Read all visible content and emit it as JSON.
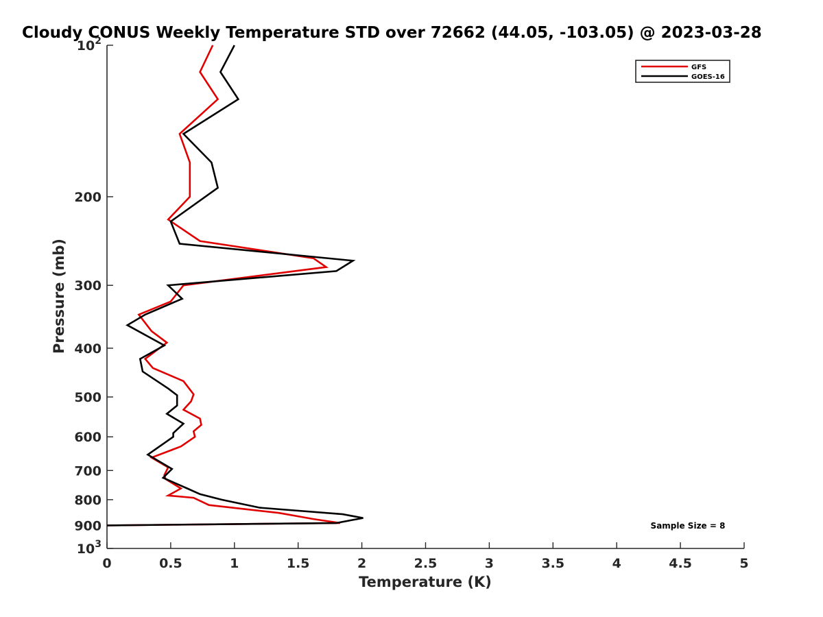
{
  "chart_data": {
    "type": "line",
    "title": "Cloudy CONUS Weekly Temperature STD over 72662 (44.05, -103.05) @ 2023-03-28",
    "xlabel": "Temperature (K)",
    "ylabel": "Pressure (mb)",
    "xlim": [
      0,
      5
    ],
    "ylim": [
      100,
      1000
    ],
    "y_scale": "log",
    "y_reversed": true,
    "grid": false,
    "legend_position": "top-right",
    "x_ticks": [
      "0",
      "0.5",
      "1",
      "1.5",
      "2",
      "2.5",
      "3",
      "3.5",
      "4",
      "4.5",
      "5"
    ],
    "y_ticks": [
      {
        "value": 100,
        "base": "10",
        "exp": "2"
      },
      {
        "value": 200,
        "label": "200"
      },
      {
        "value": 300,
        "label": "300"
      },
      {
        "value": 400,
        "label": "400"
      },
      {
        "value": 500,
        "label": "500"
      },
      {
        "value": 600,
        "label": "600"
      },
      {
        "value": 700,
        "label": "700"
      },
      {
        "value": 800,
        "label": "800"
      },
      {
        "value": 900,
        "label": "900"
      },
      {
        "value": 1000,
        "base": "10",
        "exp": "3"
      }
    ],
    "series": [
      {
        "name": "GFS",
        "color": "#e00000",
        "points": [
          [
            0.83,
            100
          ],
          [
            0.73,
            113
          ],
          [
            0.87,
            128
          ],
          [
            0.57,
            150
          ],
          [
            0.65,
            171
          ],
          [
            0.65,
            200
          ],
          [
            0.48,
            222
          ],
          [
            0.73,
            245
          ],
          [
            1.62,
            265
          ],
          [
            1.72,
            276
          ],
          [
            0.6,
            300
          ],
          [
            0.5,
            323
          ],
          [
            0.25,
            343
          ],
          [
            0.35,
            370
          ],
          [
            0.47,
            390
          ],
          [
            0.3,
            420
          ],
          [
            0.36,
            438
          ],
          [
            0.6,
            465
          ],
          [
            0.68,
            494
          ],
          [
            0.66,
            510
          ],
          [
            0.6,
            530
          ],
          [
            0.73,
            552
          ],
          [
            0.74,
            568
          ],
          [
            0.68,
            585
          ],
          [
            0.69,
            600
          ],
          [
            0.58,
            627
          ],
          [
            0.35,
            660
          ],
          [
            0.48,
            690
          ],
          [
            0.45,
            715
          ],
          [
            0.46,
            728
          ],
          [
            0.58,
            760
          ],
          [
            0.48,
            785
          ],
          [
            0.68,
            793
          ],
          [
            0.8,
            820
          ],
          [
            1.35,
            850
          ],
          [
            1.62,
            874
          ],
          [
            1.83,
            890
          ],
          [
            0,
            900
          ]
        ]
      },
      {
        "name": "GOES-16",
        "color": "#000000",
        "points": [
          [
            1.0,
            100
          ],
          [
            0.89,
            113
          ],
          [
            1.03,
            128
          ],
          [
            0.6,
            150
          ],
          [
            0.82,
            171
          ],
          [
            0.87,
            192
          ],
          [
            0.5,
            224
          ],
          [
            0.57,
            248
          ],
          [
            1.93,
            268
          ],
          [
            1.8,
            281
          ],
          [
            0.48,
            300
          ],
          [
            0.59,
            319
          ],
          [
            0.3,
            343
          ],
          [
            0.16,
            360
          ],
          [
            0.45,
            395
          ],
          [
            0.26,
            420
          ],
          [
            0.28,
            445
          ],
          [
            0.48,
            481
          ],
          [
            0.55,
            496
          ],
          [
            0.55,
            520
          ],
          [
            0.47,
            540
          ],
          [
            0.6,
            565
          ],
          [
            0.52,
            590
          ],
          [
            0.52,
            600
          ],
          [
            0.32,
            651
          ],
          [
            0.51,
            695
          ],
          [
            0.44,
            724
          ],
          [
            0.63,
            760
          ],
          [
            0.73,
            780
          ],
          [
            0.9,
            800
          ],
          [
            1.2,
            830
          ],
          [
            1.85,
            855
          ],
          [
            2.01,
            870
          ],
          [
            1.8,
            890
          ],
          [
            0,
            900
          ]
        ]
      }
    ],
    "annotation": "Sample Size = 8"
  }
}
